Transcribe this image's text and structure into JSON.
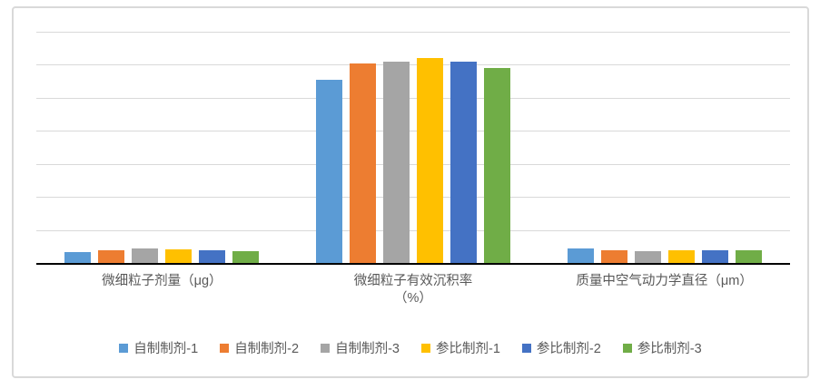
{
  "chart_data": {
    "type": "bar",
    "title": "",
    "categories": [
      "微细粒子剂量（μg）",
      "微细粒子有效沉积率（%）",
      "质量中空气动力学直径（μm）"
    ],
    "category_display_labels": [
      "微细粒子剂量（μg）",
      "微细粒子有效沉积率\n（%）",
      "质量中空气动力学直径（μm）"
    ],
    "series": [
      {
        "name": "自制制剂-1",
        "color": "#5B9BD5",
        "values": [
          3.2,
          55.5,
          4.4
        ]
      },
      {
        "name": "自制制剂-2",
        "color": "#ED7D31",
        "values": [
          3.8,
          60.5,
          3.9
        ]
      },
      {
        "name": "自制制剂-3",
        "color": "#A5A5A5",
        "values": [
          4.3,
          61.0,
          3.7
        ]
      },
      {
        "name": "参比制剂-1",
        "color": "#FFC000",
        "values": [
          4.1,
          62.0,
          3.8
        ]
      },
      {
        "name": "参比制剂-2",
        "color": "#4472C4",
        "values": [
          3.9,
          61.0,
          3.9
        ]
      },
      {
        "name": "参比制剂-3",
        "color": "#70AD47",
        "values": [
          3.6,
          59.0,
          3.9
        ]
      }
    ],
    "ylim": [
      0,
      70
    ],
    "y_major_unit": 10,
    "y_tick_labels_visible": false,
    "grid": true,
    "legend_position": "bottom"
  },
  "styles": {
    "grid_color": "#D9D9D9",
    "axis_color": "#000000",
    "text_color": "#595959",
    "frame_border_color": "#D9D9D9",
    "background": "#FFFFFF"
  }
}
